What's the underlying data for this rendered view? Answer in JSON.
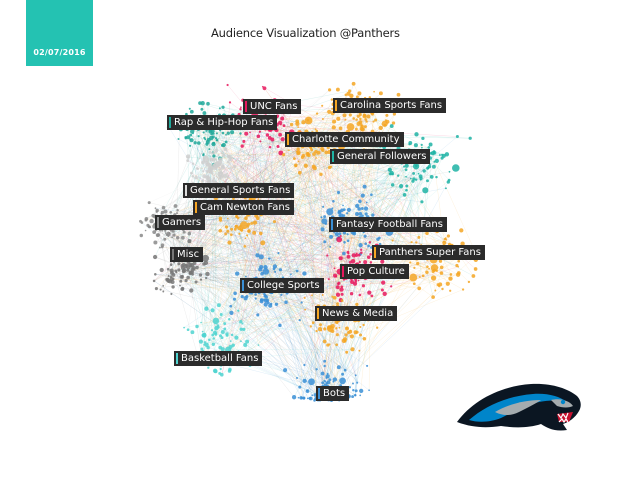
{
  "header": {
    "date": "02/07/2016",
    "title": "Audience Visualization @Panthers",
    "accent_color": "#24c2b2"
  },
  "clusters": [
    {
      "id": "unc",
      "label": "UNC Fans",
      "color": "#e8175d"
    },
    {
      "id": "carolina-sports",
      "label": "Carolina Sports Fans",
      "color": "#f5a623"
    },
    {
      "id": "rap-hiphop",
      "label": "Rap & Hip-Hop Fans",
      "color": "#1fa89a"
    },
    {
      "id": "charlotte",
      "label": "Charlotte Community",
      "color": "#f5a623"
    },
    {
      "id": "general-followers",
      "label": "General Followers",
      "color": "#1fb3a4"
    },
    {
      "id": "general-sports",
      "label": "General Sports Fans",
      "color": "#dddddd"
    },
    {
      "id": "cam-newton",
      "label": "Cam Newton Fans",
      "color": "#f5a623"
    },
    {
      "id": "gamers",
      "label": "Gamers",
      "color": "#8a8a8a"
    },
    {
      "id": "fantasy-football",
      "label": "Fantasy Football Fans",
      "color": "#3a8fd6"
    },
    {
      "id": "misc",
      "label": "Misc",
      "color": "#777777"
    },
    {
      "id": "panthers-super",
      "label": "Panthers Super Fans",
      "color": "#f5a623"
    },
    {
      "id": "pop-culture",
      "label": "Pop Culture",
      "color": "#e8175d"
    },
    {
      "id": "college-sports",
      "label": "College Sports",
      "color": "#3a8fd6"
    },
    {
      "id": "news-media",
      "label": "News & Media",
      "color": "#f5a623"
    },
    {
      "id": "basketball",
      "label": "Basketball Fans",
      "color": "#4fd3d0"
    },
    {
      "id": "bots",
      "label": "Bots",
      "color": "#3a8fd6"
    }
  ],
  "logo": {
    "name": "carolina-panthers-logo"
  }
}
